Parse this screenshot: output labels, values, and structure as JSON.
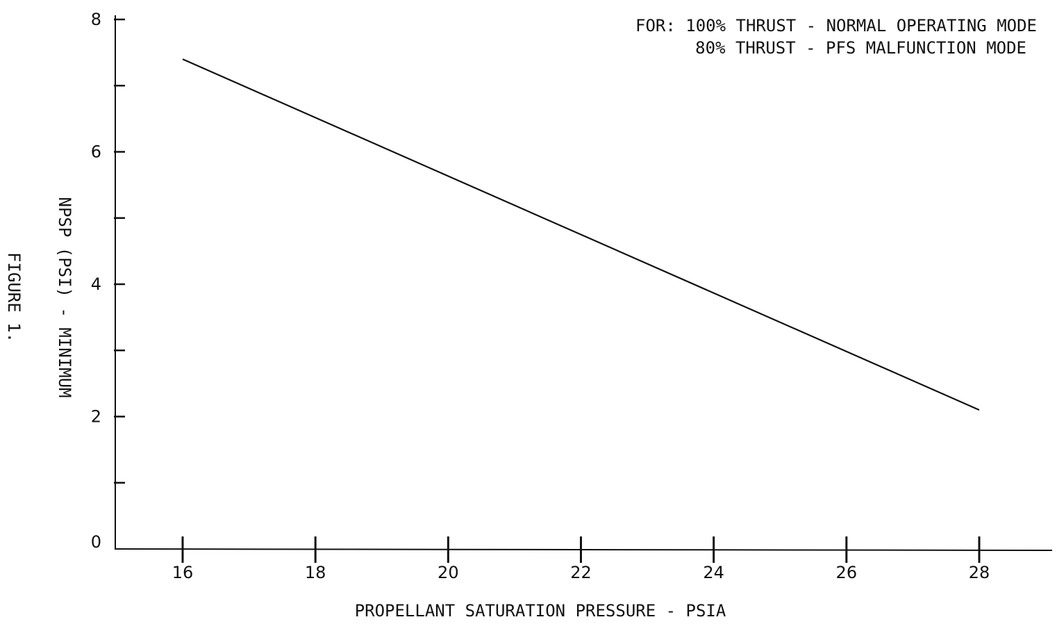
{
  "figure_label": "FIGURE 1.",
  "chart_data": {
    "type": "line",
    "title": "",
    "xlabel": "PROPELLANT SATURATION PRESSURE - PSIA",
    "ylabel": "NPSP (PSI) - MINIMUM",
    "xlim": [
      15,
      29
    ],
    "ylim": [
      0,
      8
    ],
    "x_ticks": [
      16,
      18,
      20,
      22,
      24,
      26,
      28
    ],
    "x_tick_labels": [
      "16",
      "18",
      "20",
      "22",
      "24",
      "26",
      "28"
    ],
    "y_ticks": [
      0,
      1,
      2,
      3,
      4,
      5,
      6,
      7,
      8
    ],
    "y_tick_labels": [
      "0",
      "",
      "2",
      "",
      "4",
      "",
      "6",
      "",
      "8"
    ],
    "grid": false,
    "annotation": {
      "line1": "FOR:  100% THRUST - NORMAL OPERATING MODE",
      "line2": "80% THRUST - PFS MALFUNCTION MODE"
    },
    "series": [
      {
        "x": [
          16,
          28
        ],
        "y": [
          7.4,
          2.1
        ]
      }
    ],
    "line_color": "#111111"
  }
}
